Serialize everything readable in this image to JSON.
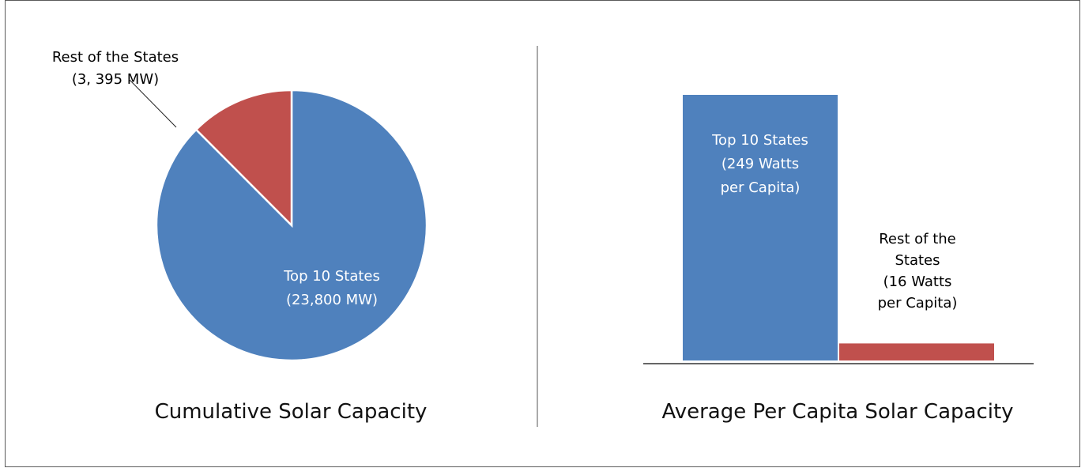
{
  "chart_data": [
    {
      "type": "pie",
      "title": "Cumulative Solar Capacity",
      "unit": "MW",
      "slices": [
        {
          "name": "Top 10 States",
          "value": 23800,
          "label_lines": [
            "Top 10 States",
            "(23,800 MW)"
          ],
          "color": "#4f81bd"
        },
        {
          "name": "Rest of the States",
          "value": 3395,
          "label_lines": [
            "Rest of the States",
            "(3, 395 MW)"
          ],
          "color": "#c0504d"
        }
      ]
    },
    {
      "type": "bar",
      "title": "Average Per Capita Solar Capacity",
      "unit": "Watts per Capita",
      "categories": [
        "Top 10 States",
        "Rest of the States"
      ],
      "values": [
        249,
        16
      ],
      "colors": [
        "#4f81bd",
        "#c0504d"
      ],
      "label_lines": [
        [
          "Top 10 States",
          "(249 Watts",
          "per Capita)"
        ],
        [
          "Rest of the",
          "States",
          "(16 Watts",
          "per Capita)"
        ]
      ]
    }
  ]
}
